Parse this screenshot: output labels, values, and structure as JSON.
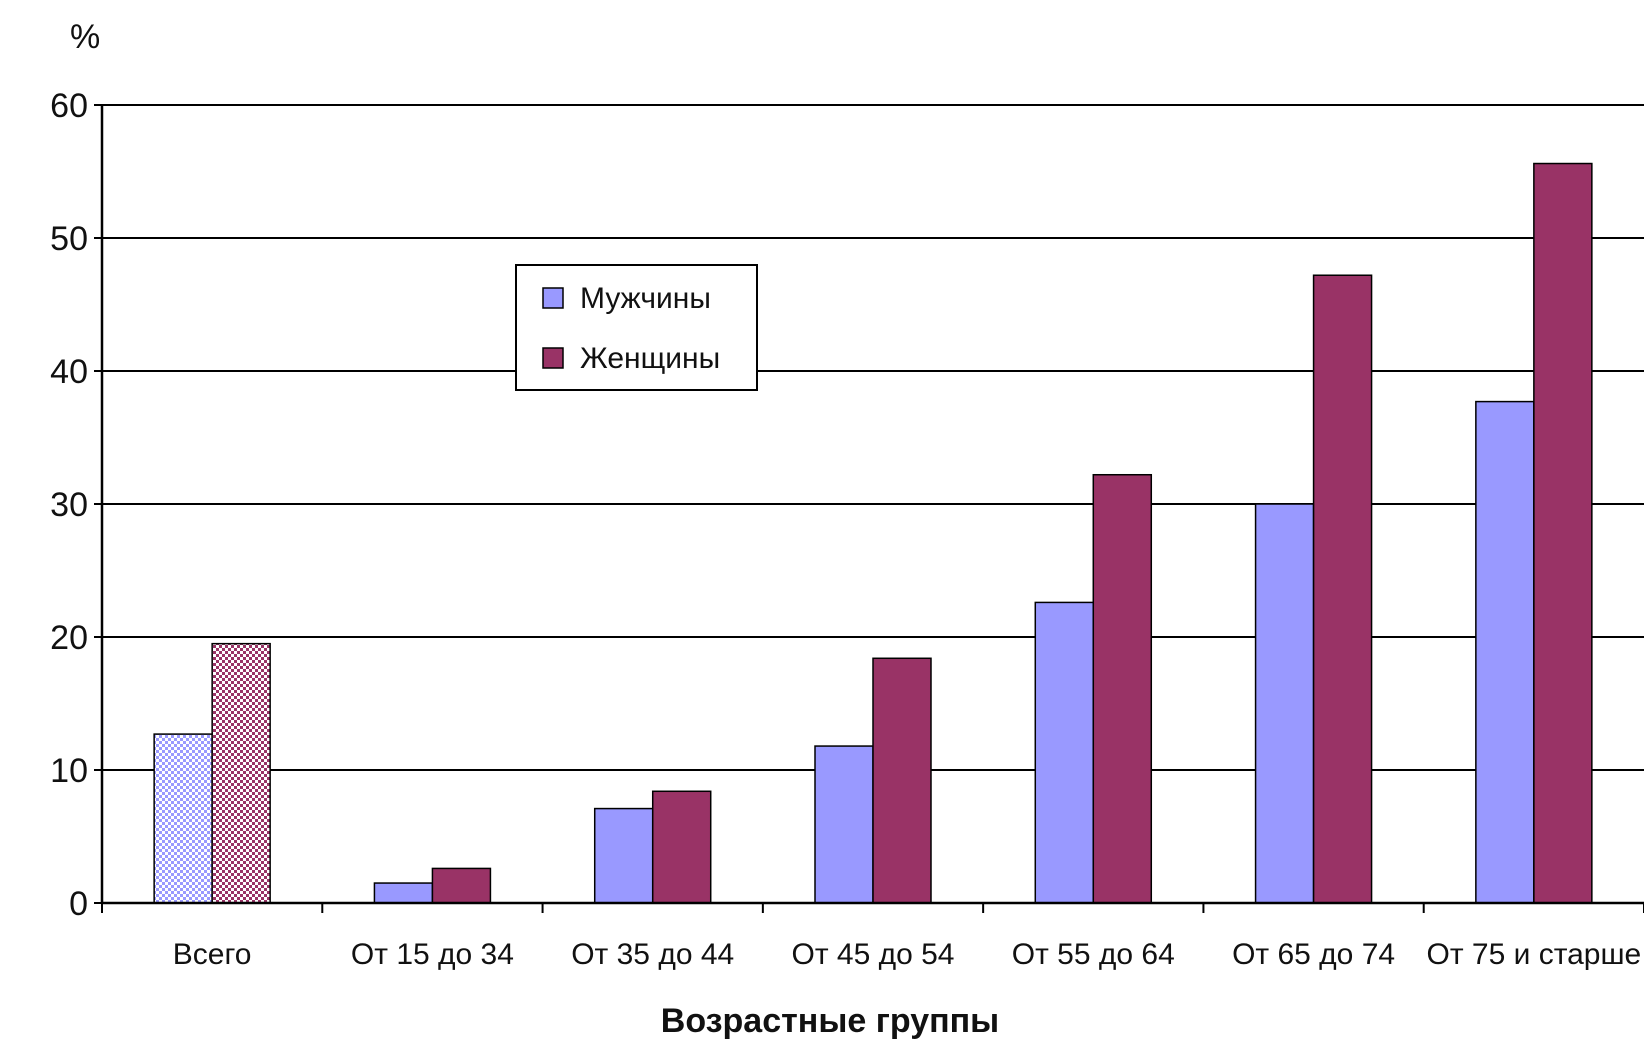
{
  "chart_data": {
    "type": "bar",
    "ylabel": "%",
    "xlabel": "Возрастные группы",
    "ylim": [
      0,
      60
    ],
    "yticks": [
      "0",
      "10",
      "20",
      "30",
      "40",
      "50",
      "60"
    ],
    "grid": true,
    "legend_position": "top-center",
    "categories": [
      "Всего",
      "От 15 до 34",
      "От 35 до 44",
      "От 45 до 54",
      "От 55 до 64",
      "От 65 до 74",
      "От 75 и старше"
    ],
    "series": [
      {
        "name": "Мужчины",
        "color": "#9999ff",
        "values": [
          12.7,
          1.5,
          7.1,
          11.8,
          22.6,
          30.0,
          37.7
        ]
      },
      {
        "name": "Женщины",
        "color": "#993366",
        "values": [
          19.5,
          2.6,
          8.4,
          18.4,
          32.2,
          47.2,
          55.6
        ]
      }
    ],
    "first_category_pattern": "checkered"
  }
}
